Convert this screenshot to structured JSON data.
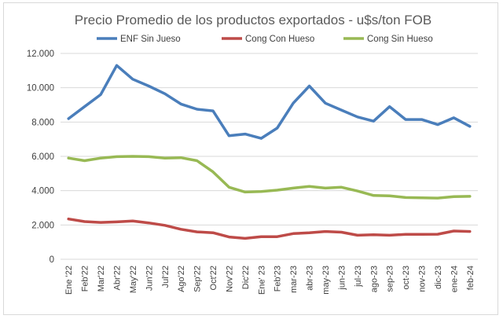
{
  "chart_data": {
    "type": "line",
    "title": "Precio Promedio de los productos exportados - u$s/ton FOB",
    "xlabel": "",
    "ylabel": "",
    "ylim": [
      0,
      12000
    ],
    "yticks": [
      "0",
      "2.000",
      "4.000",
      "6.000",
      "8.000",
      "10.000",
      "12.000"
    ],
    "ytick_values": [
      0,
      2000,
      4000,
      6000,
      8000,
      10000,
      12000
    ],
    "grid": "horizontal",
    "legend_position": "top",
    "categories": [
      "Ene '22",
      "Feb'22",
      "Mar'22",
      "Abr'22",
      "May'22",
      "Jun'22",
      "Jul'22",
      "Ago'22",
      "Sep'22",
      "Oct'22",
      "Nov'22",
      "Dic'22",
      "Ene' 23",
      "Feb'23",
      "mar-23",
      "abr-23",
      "may-23",
      "jun-23",
      "jul-23",
      "ago-23",
      "sep-23",
      "oct-23",
      "nov-23",
      "dic-23",
      "ene-24",
      "feb-24"
    ],
    "series": [
      {
        "name": "ENF Sin Jueso",
        "color": "#4a7ebb",
        "values": [
          8200,
          8900,
          9600,
          11300,
          10500,
          10100,
          9650,
          9050,
          8750,
          8650,
          7200,
          7300,
          7050,
          7650,
          9100,
          10100,
          9100,
          8700,
          8300,
          8050,
          8900,
          8150,
          8150,
          7850,
          8250,
          7750
        ]
      },
      {
        "name": "Cong Con Hueso",
        "color": "#be4b48",
        "values": [
          2350,
          2200,
          2150,
          2180,
          2230,
          2120,
          1980,
          1750,
          1600,
          1550,
          1300,
          1220,
          1320,
          1320,
          1500,
          1550,
          1620,
          1580,
          1400,
          1430,
          1400,
          1450,
          1450,
          1460,
          1650,
          1620
        ]
      },
      {
        "name": "Cong Sin Hueso",
        "color": "#98b954",
        "values": [
          5900,
          5750,
          5900,
          5980,
          6000,
          5980,
          5900,
          5920,
          5750,
          5100,
          4200,
          3920,
          3950,
          4030,
          4150,
          4250,
          4150,
          4200,
          3980,
          3720,
          3700,
          3600,
          3580,
          3570,
          3650,
          3670
        ]
      }
    ]
  }
}
